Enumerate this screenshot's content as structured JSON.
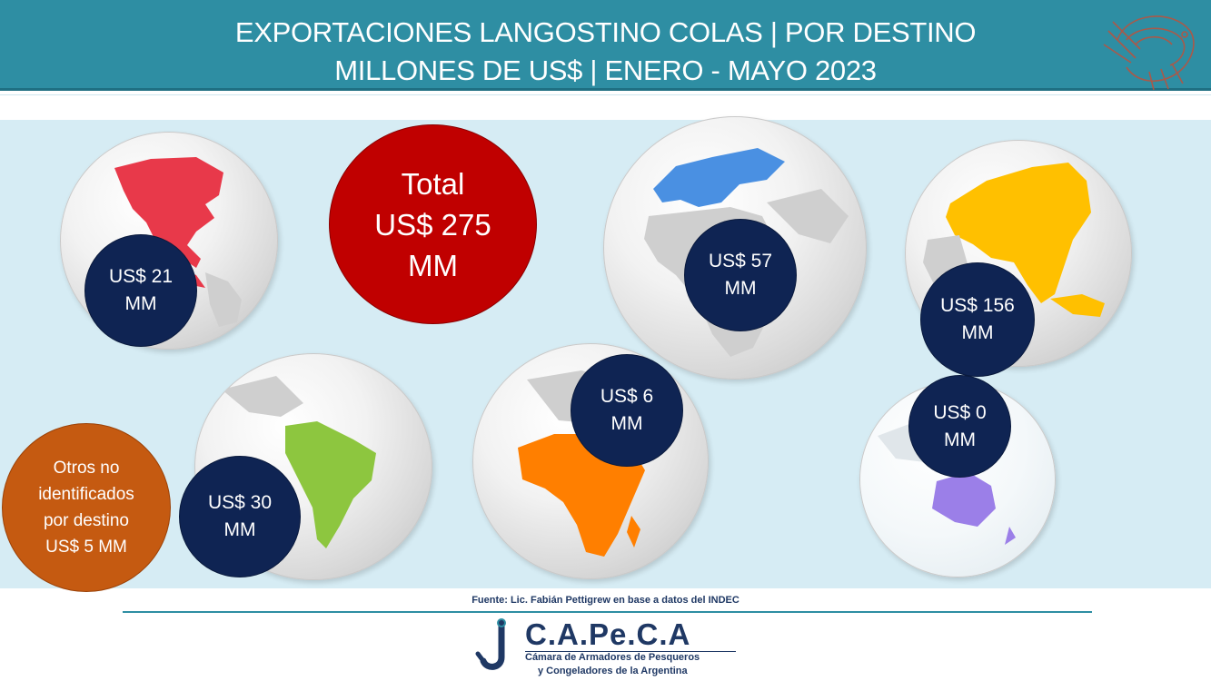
{
  "header": {
    "title_line1": "EXPORTACIONES LANGOSTINO COLAS | POR DESTINO",
    "title_line2": "MILLONES DE US$ | ENERO - MAYO 2023"
  },
  "colors": {
    "header_bg": "#2e8ea3",
    "panel_bg": "#d6ecf4",
    "value_circle": "#0f2453",
    "total_circle": "#c00000",
    "other_circle": "#c55a11",
    "north_america": "#e8394a",
    "europe": "#4a90e2",
    "asia": "#ffc000",
    "south_america": "#8dc63f",
    "africa": "#ff7f00",
    "oceania": "#9b7fe8"
  },
  "total": {
    "line1": "Total",
    "line2": "US$ 275",
    "line3": "MM"
  },
  "regions": [
    {
      "id": "north_america",
      "icon": "north-america-globe-icon",
      "amount": "US$ 21",
      "unit": "MM"
    },
    {
      "id": "europe",
      "icon": "europe-globe-icon",
      "amount": "US$ 57",
      "unit": "MM"
    },
    {
      "id": "asia",
      "icon": "asia-globe-icon",
      "amount": "US$ 156",
      "unit": "MM"
    },
    {
      "id": "south_america",
      "icon": "south-america-globe-icon",
      "amount": "US$ 30",
      "unit": "MM"
    },
    {
      "id": "africa",
      "icon": "africa-globe-icon",
      "amount": "US$ 6",
      "unit": "MM"
    },
    {
      "id": "oceania",
      "icon": "oceania-globe-icon",
      "amount": "US$ 0",
      "unit": "MM"
    }
  ],
  "other": {
    "line1": "Otros no",
    "line2": "identificados",
    "line3": "por destino",
    "line4": "US$ 5 MM"
  },
  "source": "Fuente: Lic. Fabián Pettigrew en base a datos del INDEC",
  "logo": {
    "title": "C.A.Pe.C.A",
    "subtitle_line1": "Cámara de Armadores de Pesqueros",
    "subtitle_line2": "y Congeladores de la Argentina"
  }
}
